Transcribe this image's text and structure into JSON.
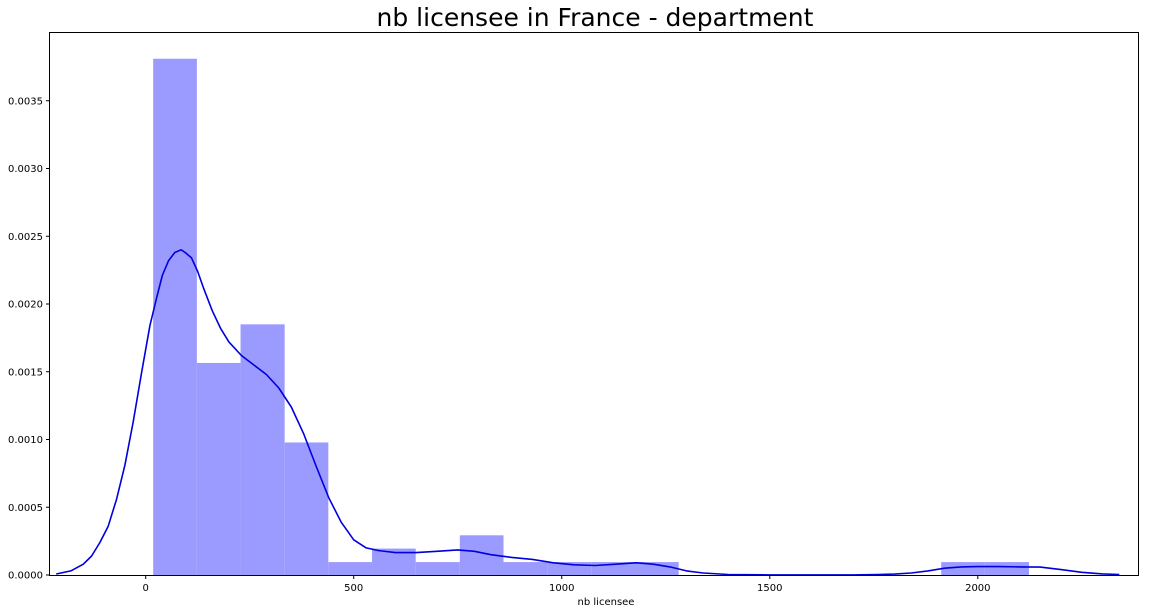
{
  "chart_data": {
    "type": "bar",
    "title": "nb licensee in France - department",
    "xlabel": "nb licensee",
    "ylabel": "",
    "xlim": [
      -230,
      2385
    ],
    "ylim": [
      0,
      0.004
    ],
    "x_ticks": [
      0,
      500,
      1000,
      1500,
      2000
    ],
    "x_tick_labels": [
      "0",
      "500",
      "1000",
      "1500",
      "2000"
    ],
    "y_ticks": [
      0,
      0.0005,
      0.001,
      0.0015,
      0.002,
      0.0025,
      0.003,
      0.0035
    ],
    "y_tick_labels": [
      "0.0000",
      "0.0005",
      "0.0010",
      "0.0015",
      "0.0020",
      "0.0025",
      "0.0030",
      "0.0035"
    ],
    "grid": false,
    "histogram": {
      "name": "",
      "color": "#9b9bff",
      "bins": [
        {
          "x0": 18,
          "x1": 123,
          "density": 0.00381
        },
        {
          "x0": 123,
          "x1": 228,
          "density": 0.001565
        },
        {
          "x0": 228,
          "x1": 334,
          "density": 0.00185
        },
        {
          "x0": 334,
          "x1": 439,
          "density": 0.000978
        },
        {
          "x0": 439,
          "x1": 544,
          "density": 9.53e-05
        },
        {
          "x0": 544,
          "x1": 649,
          "density": 0.000195
        },
        {
          "x0": 649,
          "x1": 755,
          "density": 9.53e-05
        },
        {
          "x0": 755,
          "x1": 860,
          "density": 0.000293
        },
        {
          "x0": 860,
          "x1": 965,
          "density": 9.53e-05
        },
        {
          "x0": 965,
          "x1": 1071,
          "density": 9.53e-05
        },
        {
          "x0": 1071,
          "x1": 1176,
          "density": 9.53e-05
        },
        {
          "x0": 1176,
          "x1": 1281,
          "density": 9.53e-05
        },
        {
          "x0": 1912,
          "x1": 2017,
          "density": 9.53e-05
        },
        {
          "x0": 2017,
          "x1": 2123,
          "density": 9.53e-05
        }
      ]
    },
    "kde": {
      "name": "",
      "color": "#0000dd",
      "x": [
        -215,
        -180,
        -150,
        -130,
        -110,
        -90,
        -70,
        -50,
        -30,
        -10,
        10,
        25,
        40,
        55,
        70,
        85,
        95,
        110,
        125,
        140,
        160,
        180,
        200,
        230,
        260,
        290,
        320,
        350,
        380,
        410,
        440,
        470,
        500,
        530,
        560,
        600,
        650,
        700,
        750,
        790,
        830,
        880,
        930,
        980,
        1030,
        1080,
        1130,
        1180,
        1220,
        1260,
        1300,
        1340,
        1400,
        1500,
        1600,
        1700,
        1760,
        1800,
        1840,
        1880,
        1920,
        1960,
        2000,
        2050,
        2100,
        2150,
        2200,
        2250,
        2300,
        2340
      ],
      "y": [
        7.3e-06,
        3e-05,
        8e-05,
        0.00014,
        0.00024,
        0.00036,
        0.00056,
        0.00081,
        0.00113,
        0.00149,
        0.00184,
        0.00203,
        0.00221,
        0.00232,
        0.00238,
        0.0024,
        0.00238,
        0.00234,
        0.00224,
        0.00211,
        0.00195,
        0.00182,
        0.00172,
        0.00162,
        0.00155,
        0.00148,
        0.00138,
        0.00124,
        0.00104,
        0.0008,
        0.00057,
        0.00039,
        0.00026,
        0.0002,
        0.00018,
        0.000165,
        0.000165,
        0.000175,
        0.000185,
        0.000175,
        0.00015,
        0.00013,
        0.000115,
        9e-05,
        7.5e-05,
        7e-05,
        8e-05,
        9e-05,
        8e-05,
        6e-05,
        3e-05,
        1.5e-05,
        3.6e-06,
        7e-07,
        7e-07,
        7e-07,
        3.6e-06,
        7e-06,
        1.5e-05,
        3e-05,
        5e-05,
        6e-05,
        6.2e-05,
        6.2e-05,
        6e-05,
        5.8e-05,
        4e-05,
        2e-05,
        8e-06,
        3.6e-06
      ]
    }
  }
}
